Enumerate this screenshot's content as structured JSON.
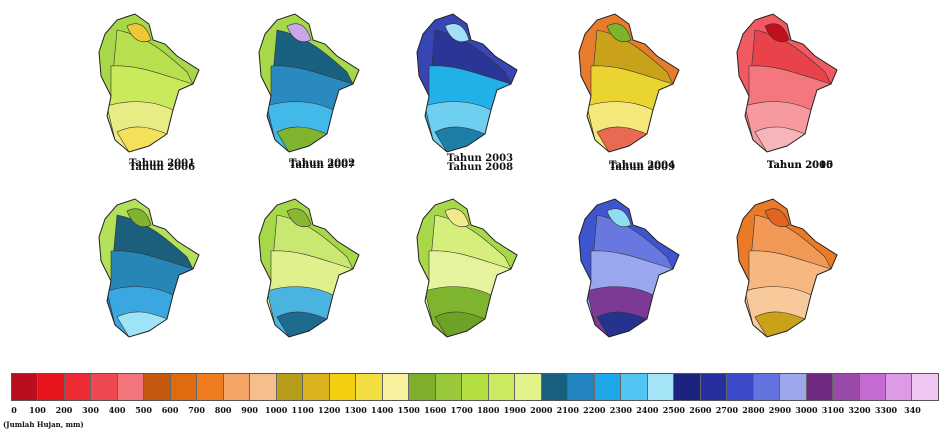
{
  "maps": [
    {
      "caption": "Tahun 2001",
      "base": "#a8d84a",
      "zones": [
        "#b8e04e",
        "#c9ea5a",
        "#e9eb85",
        "#f5e05a",
        "#f0c835"
      ]
    },
    {
      "caption": "Tahun 2002",
      "base": "#a6d84a",
      "zones": [
        "#19617e",
        "#2a8ac0",
        "#43b9ea",
        "#7fb52e",
        "#c9a6e6"
      ]
    },
    {
      "caption": "Tahun 2003",
      "base": "#3845b5",
      "zones": [
        "#2b3595",
        "#22b0e8",
        "#6ecff0",
        "#1d7ea8",
        "#a4def4"
      ]
    },
    {
      "caption": "Tahun 2004",
      "base": "#e77d2a",
      "zones": [
        "#c9a21a",
        "#ead42f",
        "#f5e87a",
        "#e96a52",
        "#7ab52b"
      ]
    },
    {
      "caption": "Tahun 2005",
      "base": "#f05a60",
      "zones": [
        "#e8434a",
        "#f3777c",
        "#f79aa0",
        "#f6b5b8",
        "#c00f1e"
      ]
    },
    {
      "caption": "Tahun 2006",
      "base": "#b4e05a",
      "zones": [
        "#1b5f7c",
        "#2785b8",
        "#3ba7e0",
        "#9ee4f6",
        "#7fb52e"
      ]
    },
    {
      "caption": "Tahun 2007",
      "base": "#a6d84a",
      "zones": [
        "#c8e870",
        "#dff08c",
        "#4ab4e0",
        "#1f6b8e",
        "#88b832"
      ]
    },
    {
      "caption": "Tahun 2008",
      "base": "#a8d84a",
      "zones": [
        "#d5ee7c",
        "#e7f39c",
        "#7fb52e",
        "#6ea227",
        "#f2ea8c"
      ]
    },
    {
      "caption": "Tahun 2009",
      "base": "#3f55cf",
      "zones": [
        "#6878e0",
        "#9aa6ee",
        "#7c3a95",
        "#25338f",
        "#8fdcf5"
      ]
    },
    {
      "caption": "Tahun 2010",
      "base": "#ea7a26",
      "zones": [
        "#f29a55",
        "#f7b880",
        "#f8c99a",
        "#c9a21a",
        "#e06520"
      ]
    }
  ],
  "legend": {
    "ticks": [
      "0",
      "100",
      "200",
      "300",
      "400",
      "500",
      "600",
      "700",
      "800",
      "900",
      "1000",
      "1100",
      "1200",
      "1300",
      "1400",
      "1500",
      "1600",
      "1700",
      "1800",
      "1900",
      "2000",
      "2100",
      "2200",
      "2300",
      "2400",
      "2500",
      "2600",
      "2700",
      "2800",
      "2900",
      "3000",
      "3100",
      "3200",
      "3300",
      "340"
    ],
    "colors": [
      "#b80e1e",
      "#e8141c",
      "#ee2b35",
      "#f04850",
      "#f2757c",
      "#c55a0e",
      "#e06a10",
      "#ee7d22",
      "#f3a466",
      "#f6be8a",
      "#b79e1a",
      "#d9b21e",
      "#f3cf12",
      "#f3de40",
      "#f8f29e",
      "#7fae2c",
      "#99c83a",
      "#b3e040",
      "#cbea62",
      "#e2f389",
      "#17607f",
      "#2285bf",
      "#1ea8ea",
      "#52c5f2",
      "#a5e3f7",
      "#1c237f",
      "#272fa0",
      "#3b4ac8",
      "#6573df",
      "#9ea6ec",
      "#6e2a80",
      "#9a4aa8",
      "#c46ad0",
      "#dd9ae5",
      "#efc8f2"
    ],
    "unit_label": "(Jumlah Hujan, mm)"
  }
}
